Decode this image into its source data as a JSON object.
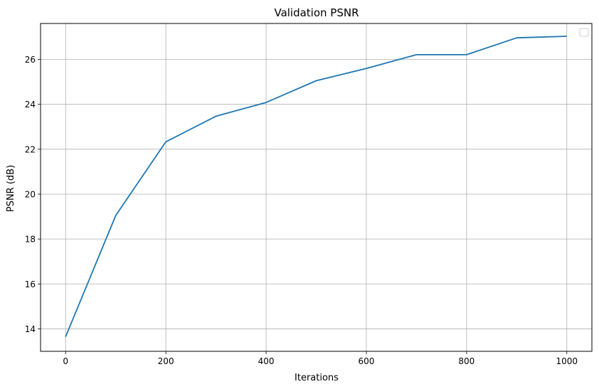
{
  "chart_data": {
    "type": "line",
    "title": "Validation PSNR",
    "xlabel": "Iterations",
    "ylabel": "PSNR (dB)",
    "xlim": [
      -50,
      1050
    ],
    "ylim": [
      13.0,
      27.6
    ],
    "xticks": [
      0,
      200,
      400,
      600,
      800,
      1000
    ],
    "yticks": [
      14,
      16,
      18,
      20,
      22,
      24,
      26
    ],
    "grid": true,
    "legend": {
      "placement": "top-right",
      "entries": []
    },
    "series": [
      {
        "color": "#1f77b4",
        "x": [
          0,
          100,
          200,
          300,
          400,
          500,
          600,
          700,
          800,
          900,
          1000
        ],
        "y": [
          13.65,
          19.05,
          22.33,
          23.47,
          24.08,
          25.05,
          25.6,
          26.21,
          26.21,
          26.96,
          27.03
        ]
      }
    ]
  }
}
